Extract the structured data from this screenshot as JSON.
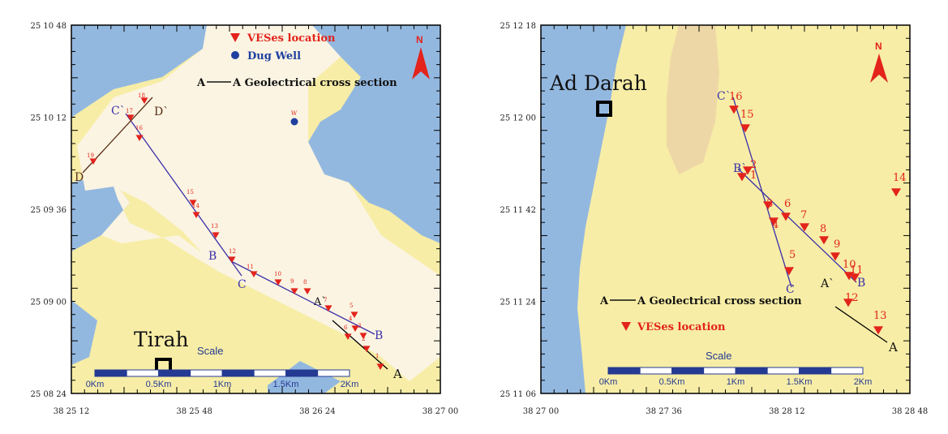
{
  "colors": {
    "water": "#93b8e0",
    "land": "#f7eda6",
    "wadi": "#fbf4e2",
    "ridge": "#eed7a6",
    "ves": "#e3231c",
    "well": "#1f3fa0",
    "section_line": "#3b2fa8",
    "scale_dark": "#253a93",
    "north": "#e3231c"
  },
  "left_map": {
    "y_axis_labels": [
      "25 10 48",
      "25 10 12",
      "25 09 36",
      "25 09 00",
      "25 08 24"
    ],
    "x_axis_labels": [
      "38 25 12",
      "38 25 48",
      "38 26 24",
      "38 27 00"
    ],
    "legend": {
      "ves": "VESes location",
      "well": "Dug Well",
      "section_prefix": "A",
      "section_label": "A Geolectrical cross section"
    },
    "north_label": "N",
    "town_label": "Tirah",
    "scale_title": "Scale",
    "scale_labels": [
      "0Km",
      "0.5Km",
      "1Km",
      "1.5Km",
      "2Km"
    ],
    "well_label": "W",
    "section_endpoints": {
      "A_start": "A`",
      "A_end": "A",
      "B_start": "B",
      "B_end": "B",
      "C_start": "C`",
      "C_end": "C",
      "D_start": "D`",
      "D_end": "D"
    },
    "ves_numbers": [
      "1",
      "2",
      "3",
      "4",
      "5",
      "6",
      "7",
      "8",
      "9",
      "10",
      "11",
      "12",
      "13",
      "14",
      "15",
      "16",
      "17",
      "18",
      "19"
    ]
  },
  "right_map": {
    "y_axis_labels": [
      "25 12 18",
      "25 12 00",
      "25 11 42",
      "25 11 24",
      "25 11 06"
    ],
    "x_axis_labels": [
      "38 27 00",
      "38 27 36",
      "38 28 12",
      "38 28 48"
    ],
    "legend": {
      "section_prefix": "A",
      "section_label": "A Geolectrical cross section",
      "ves": "VESes location"
    },
    "north_label": "N",
    "town_label": "Ad Darah",
    "scale_title": "Scale",
    "scale_labels": [
      "0Km",
      "0.5Km",
      "1Km",
      "1.5Km",
      "2Km"
    ],
    "section_endpoints": {
      "A_start": "A`",
      "A_end": "A",
      "B_start": "B`",
      "B_end": "B",
      "C_start": "C`",
      "C_end": "C"
    },
    "ves_numbers": [
      "1",
      "2",
      "3",
      "4",
      "5",
      "6",
      "7",
      "8",
      "9",
      "10",
      "11",
      "12",
      "13",
      "14",
      "15",
      "16"
    ]
  }
}
